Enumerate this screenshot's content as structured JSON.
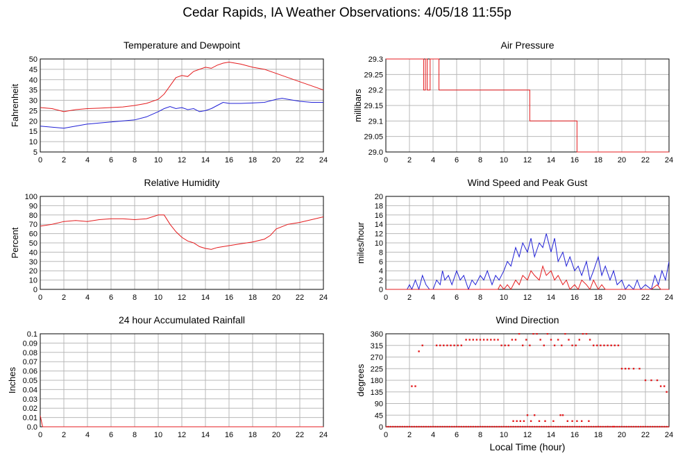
{
  "page": {
    "title": "Cedar Rapids, IA Weather Observations: 4/05/18 11:55p",
    "xlabel": "Local Time (hour)"
  },
  "colors": {
    "primary": "#e41a1c",
    "secondary": "#1f1fd6",
    "grid": "#b8b8b8",
    "axis": "#000000"
  },
  "chart_data": [
    {
      "type": "line",
      "title": "Temperature and Dewpoint",
      "ylabel": "Fahrenheit",
      "xlim": [
        0,
        24
      ],
      "ylim": [
        5,
        50
      ],
      "xticks": [
        0,
        2,
        4,
        6,
        8,
        10,
        12,
        14,
        16,
        18,
        20,
        22,
        24
      ],
      "yticks": [
        5,
        10,
        15,
        20,
        25,
        30,
        35,
        40,
        45,
        50
      ],
      "series": [
        {
          "color": "#e41a1c",
          "x": [
            0,
            1,
            2,
            3,
            4,
            5,
            6,
            7,
            8,
            9,
            10,
            10.5,
            11,
            11.5,
            12,
            12.5,
            13,
            13.5,
            14,
            14.5,
            15,
            15.5,
            16,
            17,
            18,
            19,
            20,
            21,
            22,
            23,
            24
          ],
          "y": [
            26.5,
            26,
            24.5,
            25.5,
            26,
            26.2,
            26.5,
            26.8,
            27.5,
            28.5,
            30.5,
            33,
            37,
            41,
            42,
            41.5,
            44,
            45,
            46,
            45.5,
            47,
            48,
            48.5,
            47.5,
            46,
            45,
            43,
            41,
            39,
            37,
            35
          ]
        },
        {
          "color": "#1f1fd6",
          "x": [
            0,
            1,
            2,
            3,
            4,
            5,
            6,
            7,
            8,
            9,
            10,
            10.5,
            11,
            11.5,
            12,
            12.5,
            13,
            13.5,
            14,
            14.5,
            15,
            15.5,
            16,
            17,
            18,
            19,
            20,
            20.5,
            21,
            22,
            23,
            24
          ],
          "y": [
            17.5,
            17,
            16.5,
            17.5,
            18.5,
            19,
            19.5,
            20,
            20.5,
            22,
            24.5,
            26,
            27,
            26,
            26.5,
            25.5,
            26,
            24.5,
            25,
            26,
            27.5,
            29,
            28.5,
            28.5,
            28.7,
            29,
            30.5,
            31,
            30.5,
            29.5,
            29,
            29
          ]
        }
      ]
    },
    {
      "type": "line",
      "title": "Air Pressure",
      "ylabel": "millibars",
      "xlim": [
        0,
        24
      ],
      "ylim": [
        29.0,
        29.3
      ],
      "xticks": [
        0,
        2,
        4,
        6,
        8,
        10,
        12,
        14,
        16,
        18,
        20,
        22,
        24
      ],
      "yticks": [
        29.0,
        29.05,
        29.1,
        29.15,
        29.2,
        29.25,
        29.3
      ],
      "ytick_labels": [
        "29.0",
        "29.05",
        "29.1",
        "29.15",
        "29.2",
        "29.25",
        "29.3"
      ],
      "series": [
        {
          "color": "#e41a1c",
          "x": [
            0,
            3.2,
            3.2,
            3.35,
            3.35,
            3.5,
            3.5,
            3.75,
            3.75,
            3.9,
            3.9,
            4.5,
            4.5,
            12.2,
            12.2,
            16.2,
            16.2,
            24
          ],
          "y": [
            29.3,
            29.3,
            29.2,
            29.2,
            29.3,
            29.3,
            29.2,
            29.2,
            29.3,
            29.3,
            29.3,
            29.3,
            29.2,
            29.2,
            29.1,
            29.1,
            29.0,
            29.0
          ]
        }
      ]
    },
    {
      "type": "line",
      "title": "Relative Humidity",
      "ylabel": "Percent",
      "xlim": [
        0,
        24
      ],
      "ylim": [
        0,
        100
      ],
      "xticks": [
        0,
        2,
        4,
        6,
        8,
        10,
        12,
        14,
        16,
        18,
        20,
        22,
        24
      ],
      "yticks": [
        0,
        10,
        20,
        30,
        40,
        50,
        60,
        70,
        80,
        90,
        100
      ],
      "series": [
        {
          "color": "#e41a1c",
          "x": [
            0,
            1,
            2,
            3,
            4,
            5,
            6,
            7,
            8,
            9,
            10,
            10.5,
            11,
            11.5,
            12,
            12.5,
            13,
            13.5,
            14,
            14.5,
            15,
            16,
            17,
            18,
            19,
            19.5,
            20,
            21,
            22,
            23,
            24
          ],
          "y": [
            68,
            70,
            73,
            74,
            73,
            75,
            76,
            76,
            75,
            76,
            80,
            80,
            70,
            62,
            56,
            52,
            50,
            46,
            44,
            43,
            45,
            47,
            49,
            51,
            54,
            58,
            65,
            70,
            72,
            75,
            78
          ]
        }
      ]
    },
    {
      "type": "line",
      "title": "Wind Speed and Peak Gust",
      "ylabel": "miles/hour",
      "xlim": [
        0,
        24
      ],
      "ylim": [
        0,
        20
      ],
      "xticks": [
        0,
        2,
        4,
        6,
        8,
        10,
        12,
        14,
        16,
        18,
        20,
        22,
        24
      ],
      "yticks": [
        0,
        2,
        4,
        6,
        8,
        10,
        12,
        14,
        16,
        18,
        20
      ],
      "series": [
        {
          "color": "#1f1fd6",
          "x": [
            0,
            1.8,
            2,
            2.2,
            2.5,
            2.8,
            3.1,
            3.4,
            3.7,
            4,
            4.3,
            4.6,
            4.8,
            5,
            5.3,
            5.6,
            6,
            6.3,
            6.6,
            7,
            7.3,
            7.6,
            8,
            8.3,
            8.6,
            9,
            9.3,
            9.6,
            10,
            10.3,
            10.6,
            11,
            11.3,
            11.6,
            12,
            12.3,
            12.6,
            13,
            13.3,
            13.6,
            14,
            14.3,
            14.6,
            15,
            15.3,
            15.6,
            16,
            16.3,
            16.6,
            17,
            17.3,
            17.6,
            18,
            18.3,
            18.6,
            19,
            19.3,
            19.6,
            20,
            20.3,
            20.6,
            21,
            21.3,
            21.6,
            22,
            22.5,
            22.8,
            23.1,
            23.4,
            23.7,
            24
          ],
          "y": [
            0,
            0,
            1,
            0,
            2,
            0,
            3,
            1,
            0,
            0,
            2,
            1,
            4,
            2,
            3,
            1,
            4,
            2,
            3,
            0,
            2,
            1,
            3,
            2,
            4,
            1,
            3,
            2,
            4,
            6,
            5,
            9,
            7,
            10,
            8,
            11,
            7,
            10,
            9,
            12,
            8,
            11,
            6,
            8,
            5,
            7,
            4,
            5,
            3,
            6,
            2,
            4,
            7,
            3,
            5,
            2,
            4,
            1,
            2,
            0,
            1,
            0,
            2,
            0,
            1,
            0,
            3,
            1,
            4,
            2,
            6
          ]
        },
        {
          "color": "#e41a1c",
          "x": [
            0,
            9.5,
            9.7,
            10,
            10.3,
            10.6,
            11,
            11.3,
            11.6,
            12,
            12.3,
            12.6,
            13,
            13.3,
            13.6,
            14,
            14.3,
            14.6,
            15,
            15.3,
            15.6,
            16,
            16.3,
            16.6,
            17,
            17.3,
            17.6,
            18,
            18.3,
            18.6,
            19,
            22.5,
            23,
            23.3,
            24
          ],
          "y": [
            0,
            0,
            1,
            0,
            1,
            0,
            2,
            1,
            3,
            2,
            4,
            3,
            2,
            5,
            3,
            4,
            2,
            3,
            1,
            2,
            0,
            1,
            0,
            2,
            1,
            0,
            2,
            0,
            1,
            0,
            0,
            0,
            1,
            0,
            0
          ]
        }
      ]
    },
    {
      "type": "line",
      "title": "24 hour Accumulated Rainfall",
      "ylabel": "Inches",
      "xlim": [
        0,
        24
      ],
      "ylim": [
        0,
        0.1
      ],
      "xticks": [
        0,
        2,
        4,
        6,
        8,
        10,
        12,
        14,
        16,
        18,
        20,
        22,
        24
      ],
      "yticks": [
        0,
        0.01,
        0.02,
        0.03,
        0.04,
        0.05,
        0.06,
        0.07,
        0.08,
        0.09,
        0.1
      ],
      "ytick_labels": [
        "0.0",
        "0.01",
        "0.02",
        "0.03",
        "0.04",
        "0.05",
        "0.06",
        "0.07",
        "0.08",
        "0.09",
        "0.1"
      ],
      "series": [
        {
          "color": "#e41a1c",
          "x": [
            0,
            0.1,
            0.2,
            24
          ],
          "y": [
            0.012,
            0.006,
            0,
            0
          ]
        }
      ]
    },
    {
      "type": "scatter",
      "title": "Wind Direction",
      "ylabel": "degrees",
      "xlim": [
        0,
        24
      ],
      "ylim": [
        0,
        360
      ],
      "xticks": [
        0,
        2,
        4,
        6,
        8,
        10,
        12,
        14,
        16,
        18,
        20,
        22,
        24
      ],
      "yticks": [
        0,
        45,
        90,
        135,
        180,
        225,
        270,
        315,
        360
      ],
      "series": [
        {
          "color": "#e41a1c",
          "x": [
            0,
            0.2,
            0.4,
            0.6,
            0.8,
            1,
            1.2,
            1.4,
            1.6,
            1.8,
            2.0,
            2.2,
            2.4,
            2.6,
            2.8,
            3,
            3.2,
            3.4,
            3.6,
            3.8,
            4,
            4.2,
            4.4,
            4.6,
            4.8,
            5,
            5.2,
            5.4,
            5.6,
            5.8,
            6,
            6.2,
            6.4,
            6.6,
            6.8,
            7,
            7.2,
            7.4,
            7.6,
            7.8,
            8,
            8.2,
            8.4,
            8.6,
            8.8,
            9,
            9.2,
            9.4,
            9.6,
            9.8,
            10,
            10.2,
            10.4,
            10.6,
            10.8,
            11,
            11.2,
            11.4,
            11.6,
            11.8,
            12,
            12.2,
            12.4,
            12.6,
            12.8,
            13,
            13.2,
            13.4,
            13.6,
            13.8,
            14,
            14.2,
            14.4,
            14.6,
            14.8,
            15,
            15.2,
            15.4,
            15.6,
            15.8,
            16,
            16.2,
            16.4,
            16.6,
            16.8,
            17,
            17.2,
            17.4,
            17.6,
            17.8,
            18,
            18.2,
            18.4,
            18.6,
            18.8,
            19,
            19.2,
            19.4,
            19.6,
            19.8,
            20,
            20.2,
            20.4,
            20.6,
            20.8,
            21,
            21.2,
            21.4,
            21.6,
            21.8,
            22,
            22.2,
            22.4,
            22.6,
            22.8,
            23,
            23.2,
            23.4,
            23.6,
            23.8,
            24,
            2.2,
            2.5,
            2.8,
            3.1,
            4.3,
            4.6,
            4.9,
            5.2,
            5.5,
            5.8,
            6.1,
            6.4,
            6.8,
            7.1,
            7.4,
            7.7,
            8.0,
            8.3,
            8.6,
            8.9,
            9.2,
            9.5,
            9.8,
            10.1,
            10.4,
            10.7,
            11.0,
            11.3,
            11.6,
            11.9,
            12.2,
            12.5,
            12.8,
            13.1,
            13.4,
            13.7,
            14.0,
            14.3,
            14.6,
            14.9,
            15.2,
            15.5,
            15.8,
            16.1,
            16.4,
            16.7,
            17.0,
            17.3,
            17.6,
            17.9,
            18.2,
            18.5,
            18.8,
            19.1,
            19.4,
            19.7,
            20.0,
            20.3,
            20.6,
            21.0,
            21.5,
            22.0,
            22.5,
            23.0,
            23.3,
            23.6,
            23.8,
            10.8,
            11.1,
            11.4,
            11.7,
            12.0,
            12.3,
            13.0,
            13.5,
            14.2,
            14.8,
            15.4,
            15.8,
            16.2,
            16.6,
            17.2,
            18.0,
            18.8,
            19.3,
            12.6,
            15.0
          ],
          "y": [
            0,
            0,
            0,
            0,
            0,
            0,
            0,
            0,
            0,
            0,
            0,
            0,
            0,
            0,
            0,
            0,
            0,
            0,
            0,
            0,
            0,
            0,
            0,
            0,
            0,
            0,
            0,
            0,
            0,
            0,
            0,
            0,
            0,
            0,
            0,
            0,
            0,
            0,
            0,
            0,
            0,
            0,
            0,
            0,
            0,
            0,
            0,
            0,
            0,
            0,
            0,
            0,
            0,
            0,
            0,
            0,
            0,
            0,
            0,
            0,
            0,
            0,
            0,
            0,
            0,
            0,
            0,
            0,
            0,
            0,
            0,
            0,
            0,
            0,
            0,
            0,
            0,
            0,
            0,
            0,
            0,
            0,
            0,
            0,
            0,
            0,
            0,
            0,
            0,
            0,
            0,
            0,
            0,
            0,
            0,
            0,
            0,
            0,
            0,
            0,
            0,
            0,
            0,
            0,
            0,
            0,
            0,
            0,
            0,
            0,
            0,
            0,
            0,
            0,
            0,
            0,
            0,
            0,
            0,
            0,
            0,
            157,
            157,
            292,
            315,
            315,
            315,
            315,
            315,
            315,
            315,
            315,
            315,
            337,
            337,
            337,
            337,
            337,
            337,
            337,
            337,
            337,
            337,
            315,
            315,
            315,
            337,
            337,
            360,
            315,
            337,
            315,
            360,
            360,
            337,
            315,
            360,
            337,
            315,
            337,
            315,
            360,
            337,
            315,
            315,
            337,
            360,
            360,
            337,
            315,
            315,
            315,
            315,
            315,
            315,
            315,
            315,
            225,
            225,
            225,
            225,
            225,
            180,
            180,
            180,
            157,
            157,
            135,
            22,
            22,
            22,
            22,
            45,
            22,
            22,
            22,
            22,
            45,
            22,
            22,
            22,
            22,
            22,
            0,
            0,
            0,
            45,
            45
          ]
        }
      ]
    }
  ]
}
